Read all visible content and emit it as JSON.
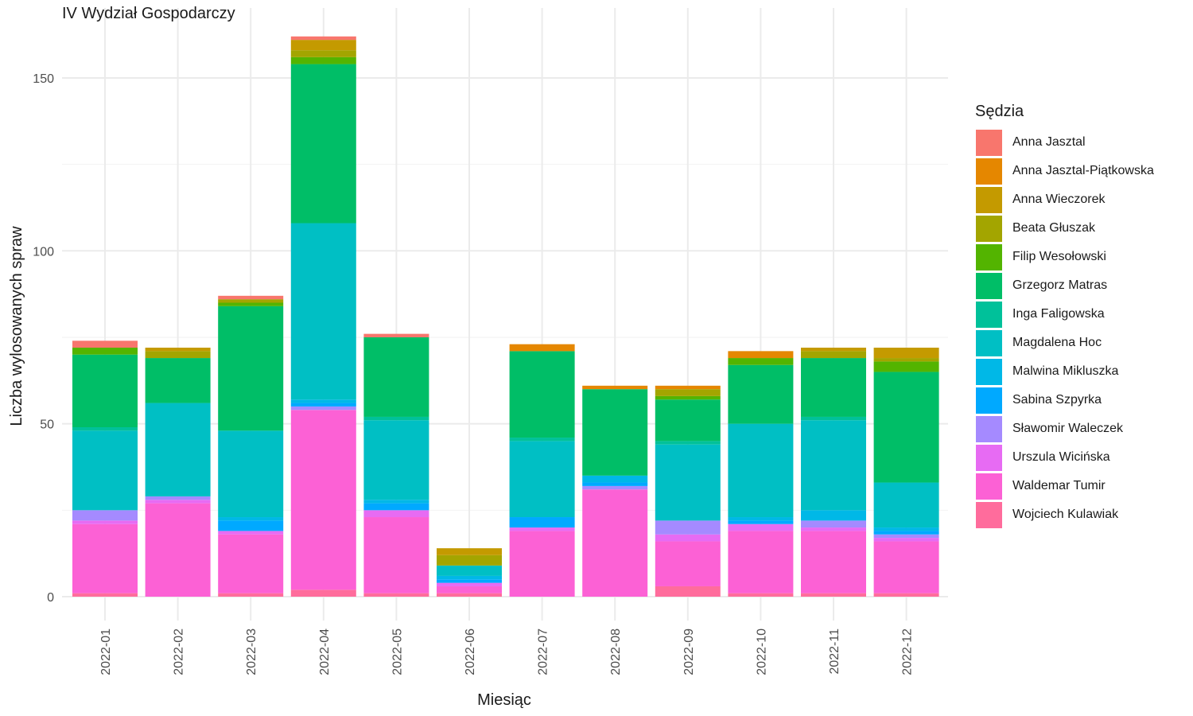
{
  "chart_data": {
    "type": "bar",
    "stacked": true,
    "title": "IV Wydział Gospodarczy",
    "xlabel": "Miesiąc",
    "ylabel": "Liczba wylosowanych spraw",
    "legend_title": "Sędzia",
    "legend_position": "right",
    "grid": true,
    "ylim": [
      0,
      162
    ],
    "y_ticks": [
      0,
      50,
      100,
      150
    ],
    "categories": [
      "2022-01",
      "2022-02",
      "2022-03",
      "2022-04",
      "2022-05",
      "2022-06",
      "2022-07",
      "2022-08",
      "2022-09",
      "2022-10",
      "2022-11",
      "2022-12"
    ],
    "series": [
      {
        "name": "Wojciech Kulawiak",
        "color": "#FF6C9C",
        "values": [
          1,
          0,
          1,
          2,
          1,
          1,
          0,
          0,
          3,
          1,
          1,
          1
        ]
      },
      {
        "name": "Waldemar Tumir",
        "color": "#FC61D5",
        "values": [
          20,
          27,
          17,
          52,
          22,
          2,
          19,
          31,
          13,
          18,
          18,
          15
        ]
      },
      {
        "name": "Urszula Wicińska",
        "color": "#E76BF3",
        "values": [
          1,
          1,
          1,
          0,
          2,
          1,
          1,
          0,
          2,
          2,
          1,
          1
        ]
      },
      {
        "name": "Sławomir Waleczek",
        "color": "#A58AFF",
        "values": [
          3,
          1,
          0,
          1,
          0,
          0,
          0,
          1,
          4,
          0,
          2,
          1
        ]
      },
      {
        "name": "Sabina Szpyrka",
        "color": "#00A9FF",
        "values": [
          0,
          0,
          3,
          1,
          2,
          1,
          3,
          1,
          0,
          1,
          0,
          1
        ]
      },
      {
        "name": "Malwina Mikluszka",
        "color": "#00B8E7",
        "values": [
          0,
          0,
          1,
          1,
          1,
          1,
          0,
          2,
          0,
          1,
          3,
          1
        ]
      },
      {
        "name": "Magdalena Hoc",
        "color": "#00BFC4",
        "values": [
          23,
          27,
          25,
          51,
          23,
          3,
          22,
          0,
          22,
          27,
          26,
          13
        ]
      },
      {
        "name": "Inga Faligowska",
        "color": "#00C19A",
        "values": [
          1,
          0,
          0,
          0,
          1,
          0,
          1,
          0,
          1,
          0,
          1,
          0
        ]
      },
      {
        "name": "Grzegorz Matras",
        "color": "#00BE67",
        "values": [
          21,
          13,
          36,
          46,
          23,
          0,
          25,
          25,
          12,
          17,
          17,
          32
        ]
      },
      {
        "name": "Filip Wesołowski",
        "color": "#53B400",
        "values": [
          2,
          0,
          1,
          2,
          0,
          0,
          0,
          0,
          1,
          2,
          0,
          3
        ]
      },
      {
        "name": "Beata Głuszak",
        "color": "#A3A500",
        "values": [
          0,
          2,
          1,
          2,
          0,
          3,
          0,
          0,
          2,
          0,
          2,
          1
        ]
      },
      {
        "name": "Anna Wieczorek",
        "color": "#C49A00",
        "values": [
          0,
          1,
          0,
          3,
          0,
          2,
          0,
          0,
          0,
          0,
          1,
          3
        ]
      },
      {
        "name": "Anna Jasztal-Piątkowska",
        "color": "#E58700",
        "values": [
          0,
          0,
          0,
          0,
          0,
          0,
          2,
          1,
          1,
          2,
          0,
          0
        ]
      },
      {
        "name": "Anna Jasztal",
        "color": "#F8766D",
        "values": [
          2,
          0,
          1,
          1,
          1,
          0,
          0,
          0,
          0,
          0,
          0,
          0
        ]
      }
    ],
    "legend_order": [
      "Anna Jasztal",
      "Anna Jasztal-Piątkowska",
      "Anna Wieczorek",
      "Beata Głuszak",
      "Filip Wesołowski",
      "Grzegorz Matras",
      "Inga Faligowska",
      "Magdalena Hoc",
      "Malwina Mikluszka",
      "Sabina Szpyrka",
      "Sławomir Waleczek",
      "Urszula Wicińska",
      "Waldemar Tumir",
      "Wojciech Kulawiak"
    ]
  }
}
